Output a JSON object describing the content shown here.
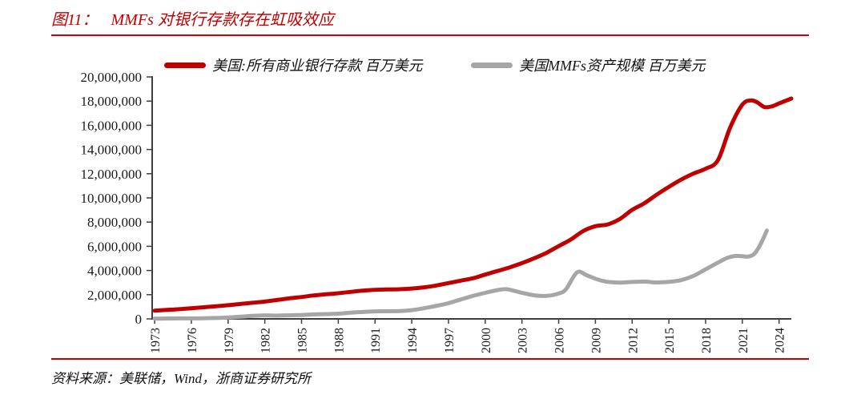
{
  "title": {
    "prefix": "图11：",
    "text": "MMFs 对银行存款存在虹吸效应"
  },
  "legend": [
    {
      "label": "美国:所有商业银行存款 百万美元",
      "color": "#c00000"
    },
    {
      "label": "美国MMFs资产规模 百万美元",
      "color": "#a6a6a6"
    }
  ],
  "source": {
    "prefix": "资料来源：",
    "text": "美联储，Wind，浙商证券研究所"
  },
  "colors": {
    "accent_red": "#c00000",
    "series_gray": "#a6a6a6",
    "rule_red": "#cc0000",
    "axis": "#3f3f3f",
    "tick_text": "#1a1a1a"
  },
  "chart_data": {
    "type": "line",
    "title": "MMFs 对银行存款存在虹吸效应",
    "xlabel": "",
    "ylabel": "",
    "unit": "百万美元",
    "grid": false,
    "legend_position": "top",
    "x_range": [
      1972.8,
      2025.0
    ],
    "ylim": [
      0,
      20000000
    ],
    "y_tick_step": 2000000,
    "x_ticks": [
      1973,
      1976,
      1979,
      1982,
      1985,
      1988,
      1991,
      1994,
      1997,
      2000,
      2003,
      2006,
      2009,
      2012,
      2015,
      2018,
      2021,
      2024
    ],
    "series": [
      {
        "name": "美国:所有商业银行存款 百万美元",
        "color": "#c00000",
        "points": [
          [
            1973,
            680000
          ],
          [
            1974,
            740000
          ],
          [
            1975,
            800000
          ],
          [
            1976,
            880000
          ],
          [
            1977,
            960000
          ],
          [
            1978,
            1040000
          ],
          [
            1979,
            1130000
          ],
          [
            1980,
            1230000
          ],
          [
            1981,
            1330000
          ],
          [
            1982,
            1430000
          ],
          [
            1983,
            1560000
          ],
          [
            1984,
            1700000
          ],
          [
            1985,
            1810000
          ],
          [
            1986,
            1940000
          ],
          [
            1987,
            2030000
          ],
          [
            1988,
            2120000
          ],
          [
            1989,
            2230000
          ],
          [
            1990,
            2330000
          ],
          [
            1991,
            2400000
          ],
          [
            1992,
            2430000
          ],
          [
            1993,
            2450000
          ],
          [
            1994,
            2510000
          ],
          [
            1995,
            2610000
          ],
          [
            1996,
            2760000
          ],
          [
            1997,
            2960000
          ],
          [
            1998,
            3160000
          ],
          [
            1999,
            3360000
          ],
          [
            2000,
            3660000
          ],
          [
            2001,
            3960000
          ],
          [
            2002,
            4260000
          ],
          [
            2003,
            4610000
          ],
          [
            2004,
            5010000
          ],
          [
            2005,
            5460000
          ],
          [
            2006,
            6010000
          ],
          [
            2007,
            6560000
          ],
          [
            2008,
            7260000
          ],
          [
            2009,
            7660000
          ],
          [
            2010,
            7810000
          ],
          [
            2011,
            8260000
          ],
          [
            2012,
            9010000
          ],
          [
            2013,
            9560000
          ],
          [
            2014,
            10260000
          ],
          [
            2015,
            10910000
          ],
          [
            2016,
            11510000
          ],
          [
            2017,
            12010000
          ],
          [
            2018,
            12410000
          ],
          [
            2019,
            13110000
          ],
          [
            2020,
            15810000
          ],
          [
            2021,
            17710000
          ],
          [
            2021.7,
            18060000
          ],
          [
            2022.2,
            17910000
          ],
          [
            2022.8,
            17510000
          ],
          [
            2023.4,
            17560000
          ],
          [
            2024,
            17810000
          ],
          [
            2025,
            18210000
          ]
        ]
      },
      {
        "name": "美国MMFs资产规模 百万美元",
        "color": "#a6a6a6",
        "points": [
          [
            1973,
            20000
          ],
          [
            1975,
            40000
          ],
          [
            1977,
            50000
          ],
          [
            1979,
            110000
          ],
          [
            1980,
            180000
          ],
          [
            1981,
            250000
          ],
          [
            1982,
            290000
          ],
          [
            1983,
            270000
          ],
          [
            1984,
            300000
          ],
          [
            1985,
            320000
          ],
          [
            1986,
            370000
          ],
          [
            1987,
            400000
          ],
          [
            1988,
            430000
          ],
          [
            1989,
            510000
          ],
          [
            1990,
            570000
          ],
          [
            1991,
            620000
          ],
          [
            1992,
            630000
          ],
          [
            1993,
            650000
          ],
          [
            1994,
            720000
          ],
          [
            1995,
            880000
          ],
          [
            1996,
            1070000
          ],
          [
            1997,
            1300000
          ],
          [
            1998,
            1600000
          ],
          [
            1999,
            1900000
          ],
          [
            2000,
            2150000
          ],
          [
            2001,
            2380000
          ],
          [
            2001.8,
            2450000
          ],
          [
            2003,
            2150000
          ],
          [
            2004,
            1950000
          ],
          [
            2005,
            1900000
          ],
          [
            2006,
            2100000
          ],
          [
            2006.6,
            2450000
          ],
          [
            2007.5,
            3850000
          ],
          [
            2008.3,
            3600000
          ],
          [
            2009.2,
            3250000
          ],
          [
            2010,
            3060000
          ],
          [
            2011,
            3000000
          ],
          [
            2012,
            3050000
          ],
          [
            2013,
            3080000
          ],
          [
            2014,
            3010000
          ],
          [
            2015,
            3060000
          ],
          [
            2016,
            3200000
          ],
          [
            2017,
            3550000
          ],
          [
            2018,
            4100000
          ],
          [
            2019,
            4650000
          ],
          [
            2019.8,
            5050000
          ],
          [
            2020.4,
            5200000
          ],
          [
            2021,
            5180000
          ],
          [
            2021.5,
            5150000
          ],
          [
            2022,
            5400000
          ],
          [
            2022.5,
            6200000
          ],
          [
            2023,
            7300000
          ]
        ]
      }
    ]
  }
}
